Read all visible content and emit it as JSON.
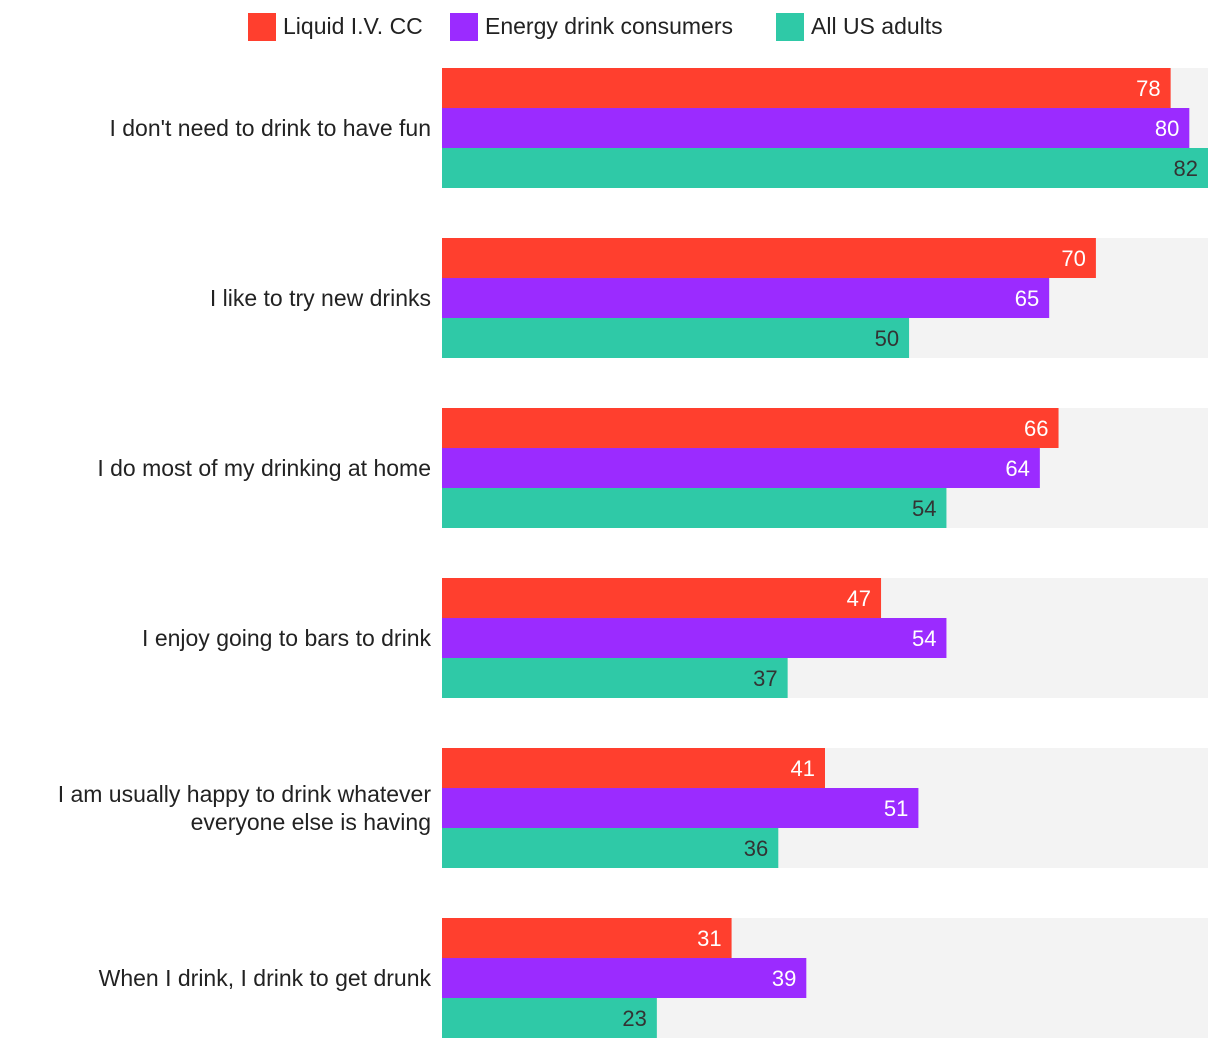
{
  "chart_data": {
    "type": "bar",
    "orientation": "horizontal",
    "title": "",
    "xlabel": "",
    "ylabel": "",
    "xlim": [
      0,
      82
    ],
    "grid": false,
    "legend_position": "top-center",
    "categories": [
      "I don't need to drink to have fun",
      "I like to try new drinks",
      "I do most of my drinking at home",
      "I enjoy going to bars to drink",
      "I am usually happy to drink whatever everyone else is having",
      "When I drink, I drink to get drunk"
    ],
    "category_lines": [
      [
        "I don't need to drink to have fun"
      ],
      [
        "I like to try new drinks"
      ],
      [
        "I do most of my drinking at home"
      ],
      [
        "I enjoy going to bars to drink"
      ],
      [
        "I am usually happy to drink whatever",
        "everyone else is having"
      ],
      [
        "When I drink, I drink to get drunk"
      ]
    ],
    "series": [
      {
        "name": "Liquid I.V. CC",
        "color": "#ff3f2e",
        "label_color": "#ffffff",
        "values": [
          78,
          70,
          66,
          47,
          41,
          31
        ]
      },
      {
        "name": "Energy drink consumers",
        "color": "#9b2bff",
        "label_color": "#ffffff",
        "values": [
          80,
          65,
          64,
          54,
          51,
          39
        ]
      },
      {
        "name": "All US adults",
        "color": "#2fc9a7",
        "label_color": "#333333",
        "values": [
          82,
          50,
          54,
          37,
          36,
          23
        ]
      }
    ],
    "background_track_color": "#f3f3f3"
  }
}
